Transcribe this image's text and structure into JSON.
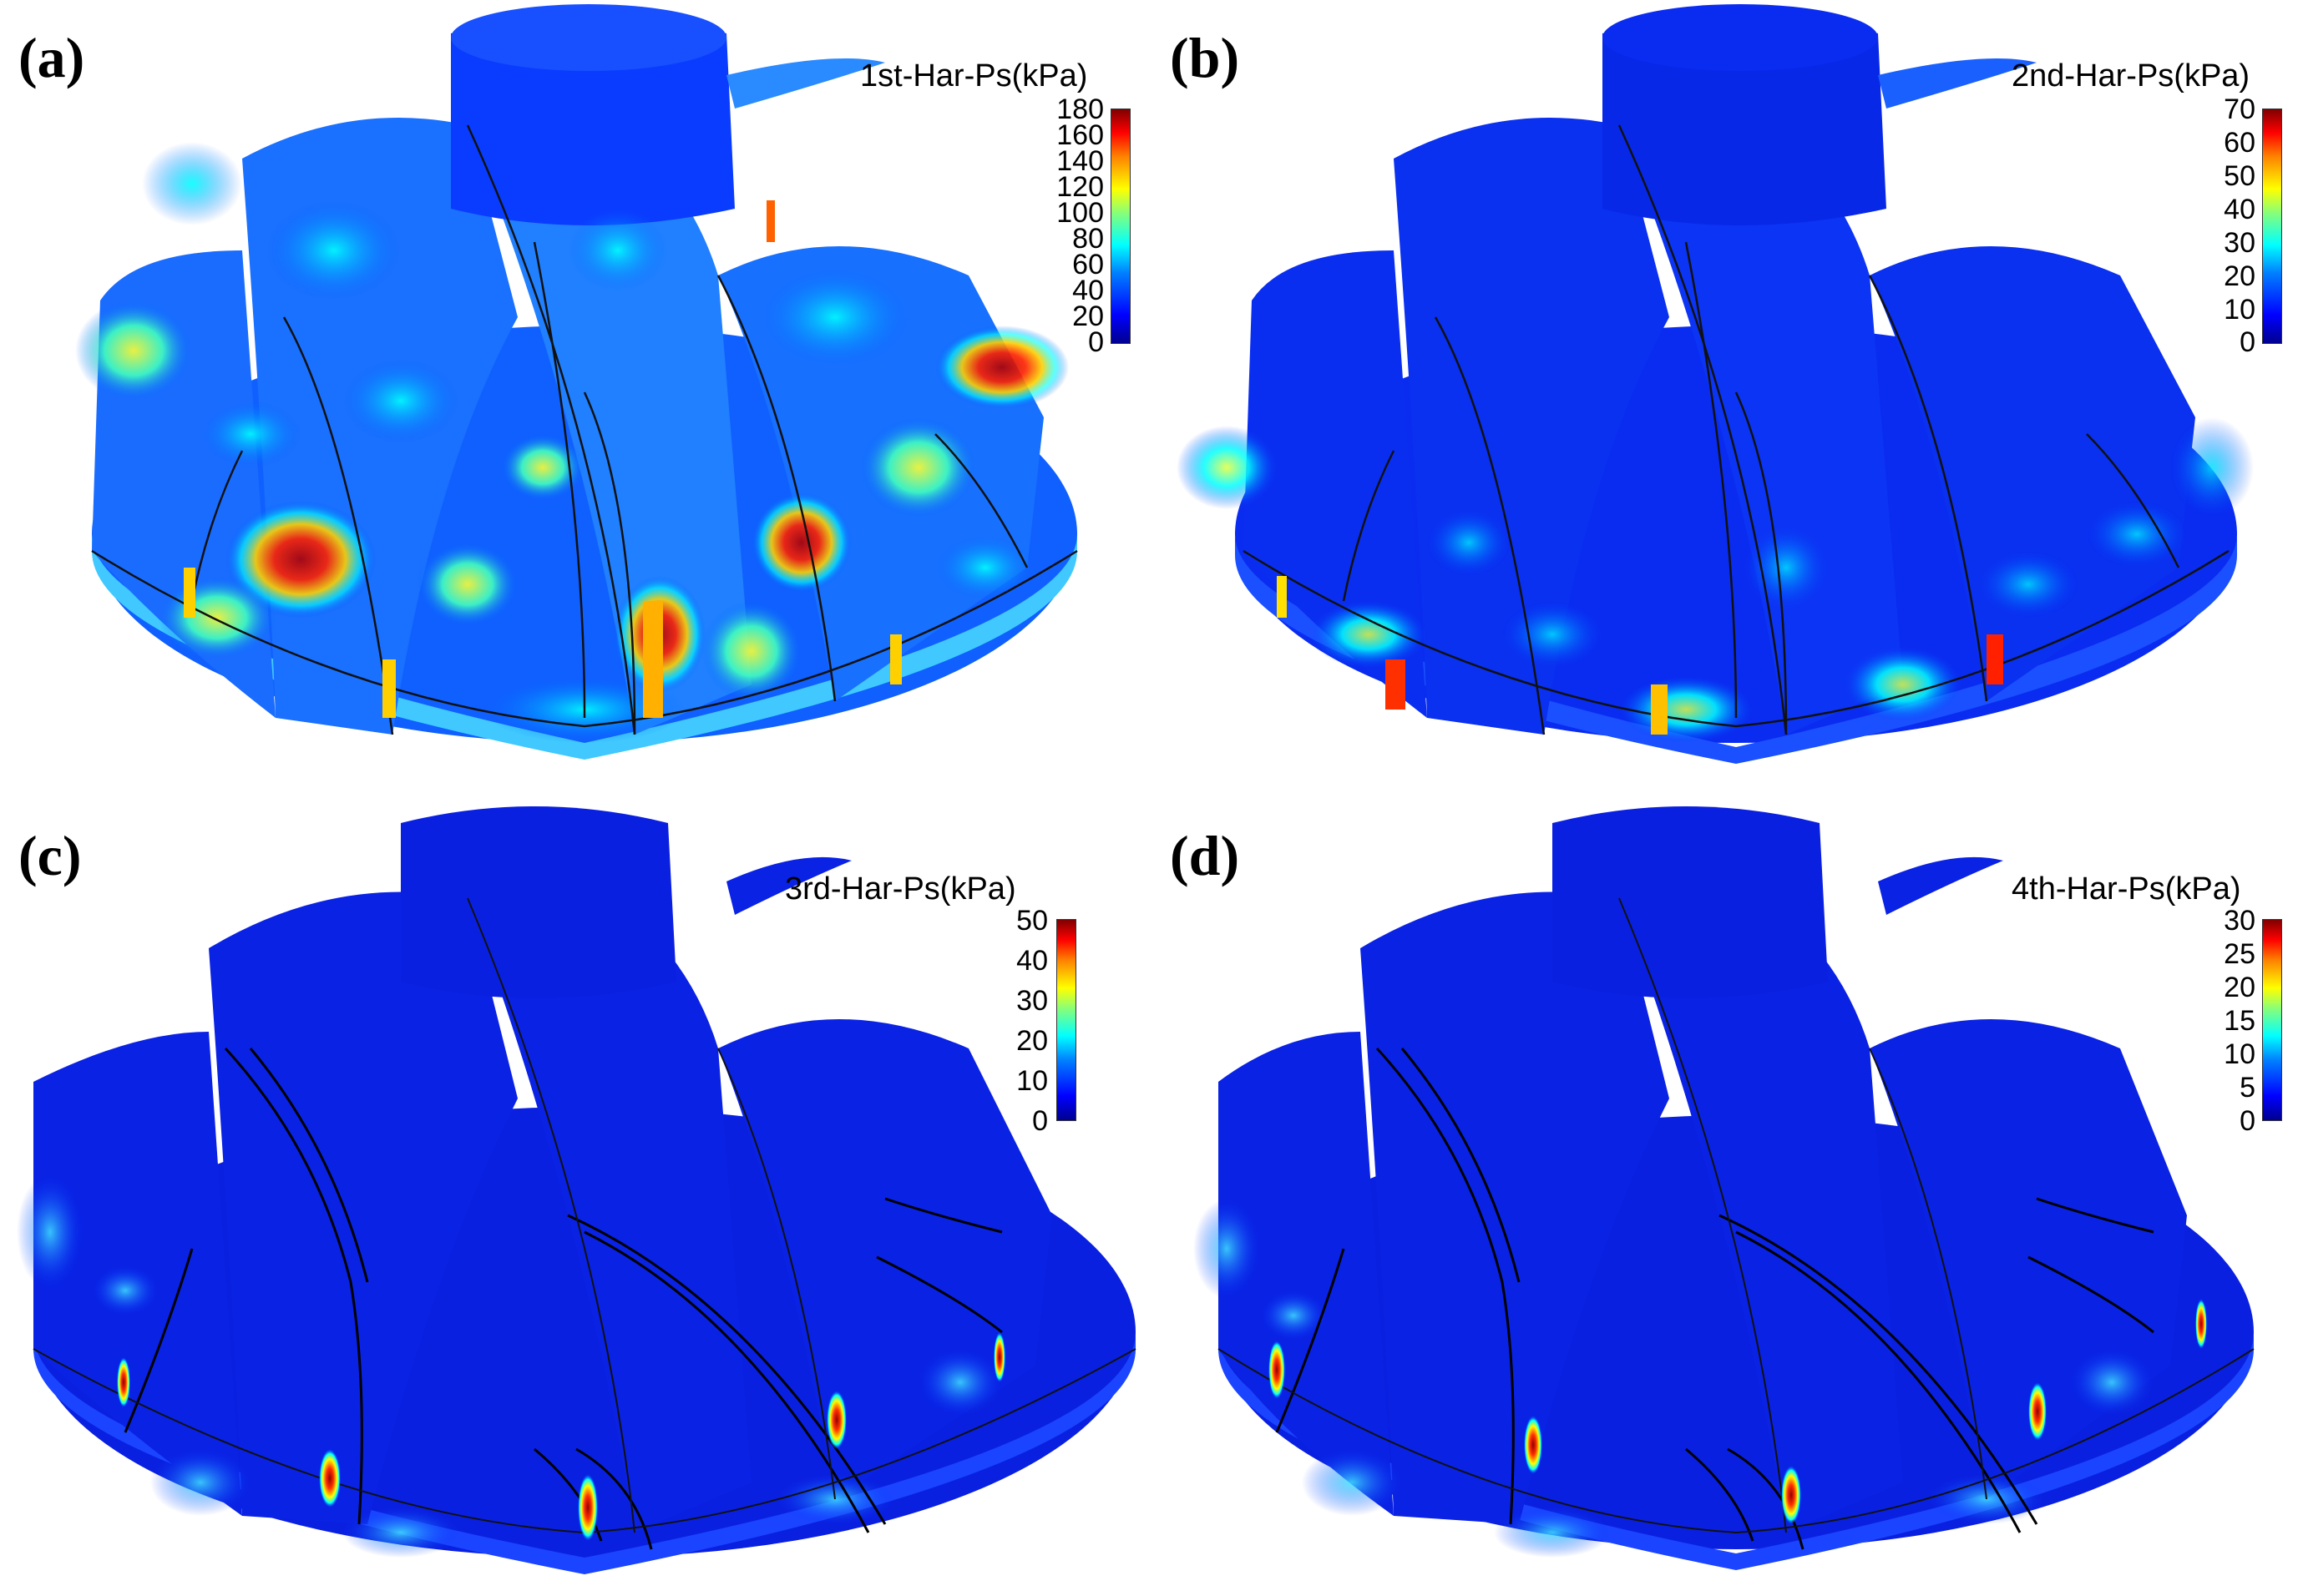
{
  "panels": [
    {
      "label": "(a)",
      "title": "1st-Har-Ps(kPa)",
      "ticks": [
        "180",
        "160",
        "140",
        "120",
        "100",
        "80",
        "60",
        "40",
        "20",
        "0"
      ],
      "max": 180,
      "intensity": "high"
    },
    {
      "label": "(b)",
      "title": "2nd-Har-Ps(kPa)",
      "ticks": [
        "70",
        "60",
        "50",
        "40",
        "30",
        "20",
        "10",
        "0"
      ],
      "max": 70,
      "intensity": "medium"
    },
    {
      "label": "(c)",
      "title": "3rd-Har-Ps(kPa)",
      "ticks": [
        "50",
        "40",
        "30",
        "20",
        "10",
        "0"
      ],
      "max": 50,
      "intensity": "low"
    },
    {
      "label": "(d)",
      "title": "4th-Har-Ps(kPa)",
      "ticks": [
        "30",
        "25",
        "20",
        "15",
        "10",
        "5",
        "0"
      ],
      "max": 30,
      "intensity": "low"
    }
  ],
  "colormap": [
    "#00008f",
    "#0000ff",
    "#0080ff",
    "#00ffff",
    "#80ff80",
    "#ffff00",
    "#ff8000",
    "#ff0000",
    "#800000"
  ]
}
